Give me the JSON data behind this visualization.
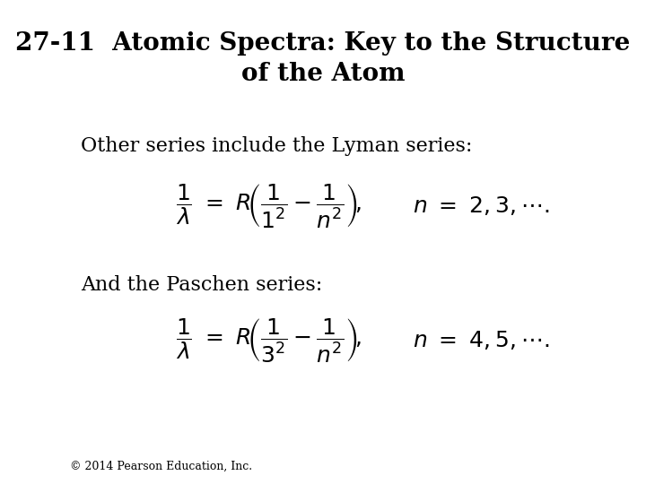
{
  "title_line1": "27-11  Atomic Spectra: Key to the Structure",
  "title_line2": "of the Atom",
  "bg_color": "#ffffff",
  "text_color": "#000000",
  "title_fontsize": 20,
  "body_fontsize": 16,
  "math_fontsize": 18,
  "footer_fontsize": 9,
  "lyman_label": "Other series include the Lyman series:",
  "paschen_label": "And the Paschen series:",
  "footer": "© 2014 Pearson Education, Inc."
}
